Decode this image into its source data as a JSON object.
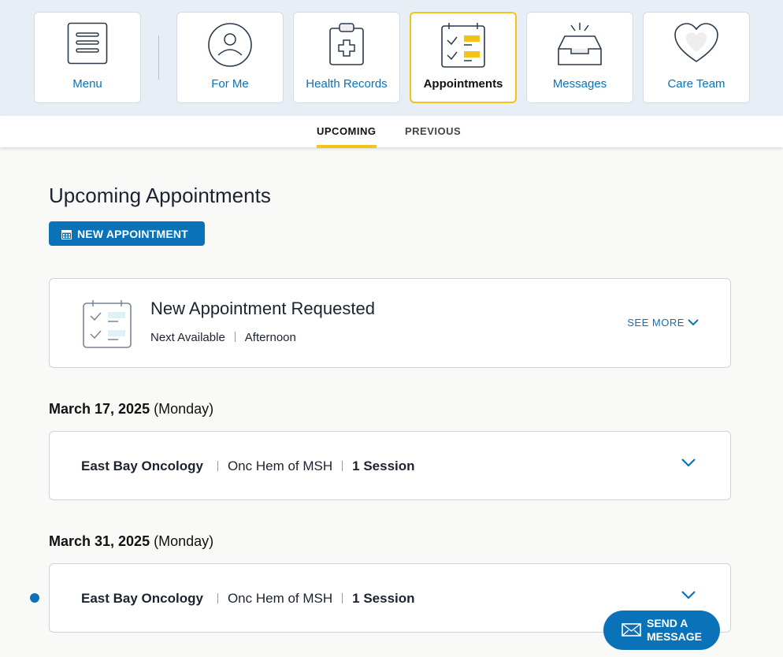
{
  "nav": {
    "tiles": [
      {
        "label": "Menu",
        "icon": "menu-icon"
      },
      {
        "label": "For Me",
        "icon": "person-icon"
      },
      {
        "label": "Health Records",
        "icon": "clipboard-icon"
      },
      {
        "label": "Appointments",
        "icon": "checklist-icon",
        "active": true
      },
      {
        "label": "Messages",
        "icon": "inbox-icon"
      },
      {
        "label": "Care Team",
        "icon": "heart-icon"
      }
    ]
  },
  "tabs": [
    {
      "label": "UPCOMING",
      "selected": true
    },
    {
      "label": "PREVIOUS"
    }
  ],
  "main": {
    "title": "Upcoming Appointments",
    "new_button": "NEW APPOINTMENT",
    "request": {
      "title": "New Appointment Requested",
      "time": "Next Available",
      "period": "Afternoon",
      "see_more": "SEE MORE"
    },
    "appointments": [
      {
        "date": "March 17, 2025",
        "day": "(Monday)",
        "location": "East Bay Oncology",
        "dept": "Onc Hem of MSH",
        "sessions": "1 Session"
      },
      {
        "date": "March 31, 2025",
        "day": "(Monday)",
        "location": "East Bay Oncology",
        "dept": "Onc Hem of MSH",
        "sessions": "1 Session"
      }
    ]
  },
  "send_message": {
    "line1": "SEND A",
    "line2": "MESSAGE"
  },
  "colors": {
    "accent": "#0a72b8",
    "highlight": "#f3c317"
  }
}
